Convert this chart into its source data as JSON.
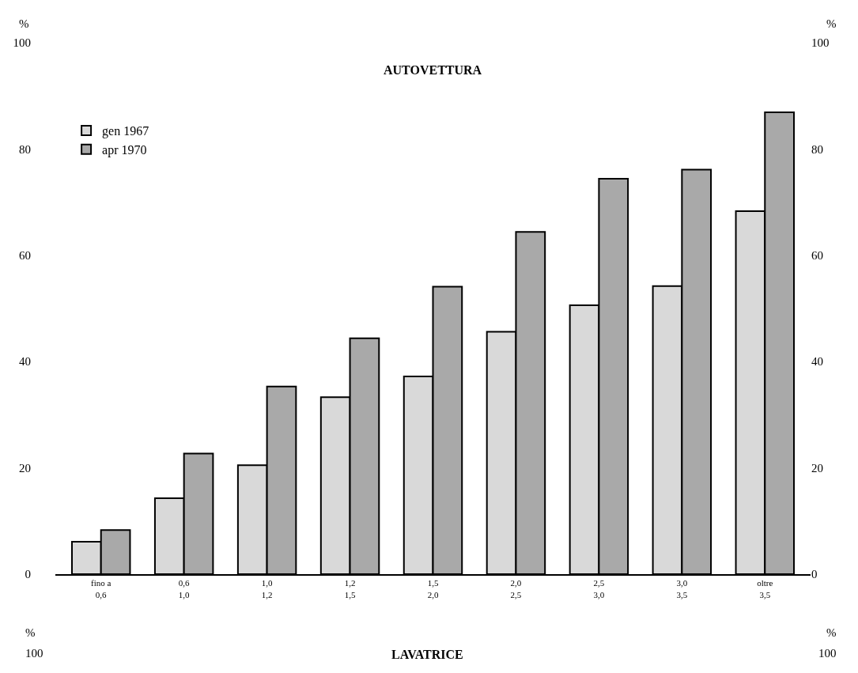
{
  "chart_data": {
    "type": "bar",
    "title": "AUTOVETTURA",
    "categories": [
      "fino a\n0,6",
      "0,6\n1,0",
      "1,0\n1,2",
      "1,2\n1,5",
      "1,5\n2,0",
      "2,0\n2,5",
      "2,5\n3,0",
      "3,0\n3,5",
      "oltre\n3,5"
    ],
    "series": [
      {
        "name": "gen 1967",
        "color": "#d9d9d9",
        "values": [
          6.1,
          14.3,
          20.5,
          33.3,
          37.2,
          45.6,
          50.6,
          54.2,
          68.3
        ]
      },
      {
        "name": "apr 1970",
        "color": "#a9a9a9",
        "values": [
          8.3,
          22.7,
          35.3,
          44.4,
          54.1,
          64.4,
          74.4,
          76.1,
          86.9
        ]
      }
    ],
    "ylim": [
      0,
      100
    ],
    "yticks": [
      0,
      20,
      40,
      60,
      80,
      100
    ],
    "y2lim": [
      0,
      100
    ],
    "y2ticks": [
      0,
      20,
      40,
      60,
      80,
      100
    ],
    "legend": "top left",
    "annotations": [
      "%",
      "%",
      "%",
      "100",
      "%",
      "100",
      "LAVATRICE"
    ]
  }
}
